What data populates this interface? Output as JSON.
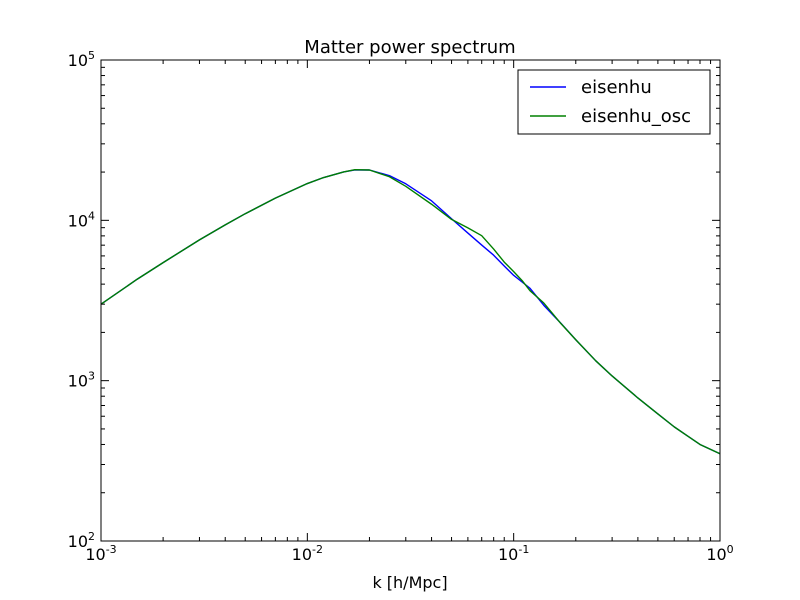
{
  "chart_data": {
    "type": "line",
    "title": "Matter power spectrum",
    "xlabel": "k [h/Mpc]",
    "ylabel": "",
    "xscale": "log",
    "yscale": "log",
    "xlim": [
      0.001,
      1
    ],
    "ylim": [
      100,
      100000
    ],
    "grid": false,
    "legend_position": "top-right",
    "x_ticks": [
      {
        "value": 0.001,
        "base": "10",
        "exp": "-3"
      },
      {
        "value": 0.01,
        "base": "10",
        "exp": "-2"
      },
      {
        "value": 0.1,
        "base": "10",
        "exp": "-1"
      },
      {
        "value": 1,
        "base": "10",
        "exp": "0"
      }
    ],
    "y_ticks": [
      {
        "value": 100,
        "base": "10",
        "exp": "2"
      },
      {
        "value": 1000,
        "base": "10",
        "exp": "3"
      },
      {
        "value": 10000,
        "base": "10",
        "exp": "4"
      },
      {
        "value": 100000,
        "base": "10",
        "exp": "5"
      }
    ],
    "series": [
      {
        "name": "eisenhu",
        "color": "#0000ff",
        "x": [
          0.001,
          0.0015,
          0.002,
          0.003,
          0.004,
          0.005,
          0.007,
          0.01,
          0.012,
          0.015,
          0.017,
          0.02,
          0.025,
          0.03,
          0.04,
          0.05,
          0.06,
          0.07,
          0.08,
          0.09,
          0.1,
          0.12,
          0.14,
          0.17,
          0.2,
          0.25,
          0.3,
          0.4,
          0.5,
          0.6,
          0.7,
          0.8,
          1.0
        ],
        "y": [
          3000,
          4300,
          5450,
          7550,
          9370,
          11000,
          13750,
          16960,
          18490,
          20030,
          20620,
          20600,
          19000,
          16900,
          13230,
          10230,
          8330,
          7010,
          6060,
          5190,
          4540,
          3770,
          2950,
          2270,
          1800,
          1330,
          1070,
          780,
          620,
          515,
          450,
          400,
          350
        ]
      },
      {
        "name": "eisenhu_osc",
        "color": "#008000",
        "x": [
          0.001,
          0.0015,
          0.002,
          0.003,
          0.004,
          0.005,
          0.007,
          0.01,
          0.012,
          0.015,
          0.017,
          0.02,
          0.025,
          0.03,
          0.04,
          0.05,
          0.06,
          0.07,
          0.08,
          0.09,
          0.1,
          0.11,
          0.12,
          0.14,
          0.17,
          0.2,
          0.25,
          0.3,
          0.4,
          0.5,
          0.6,
          0.7,
          0.8,
          1.0
        ],
        "y": [
          3000,
          4300,
          5450,
          7550,
          9370,
          11000,
          13750,
          16960,
          18490,
          20030,
          20700,
          20600,
          18700,
          16300,
          12600,
          10130,
          8970,
          8020,
          6620,
          5490,
          4790,
          4200,
          3640,
          3050,
          2260,
          1800,
          1330,
          1070,
          780,
          620,
          515,
          450,
          400,
          350
        ]
      }
    ]
  }
}
